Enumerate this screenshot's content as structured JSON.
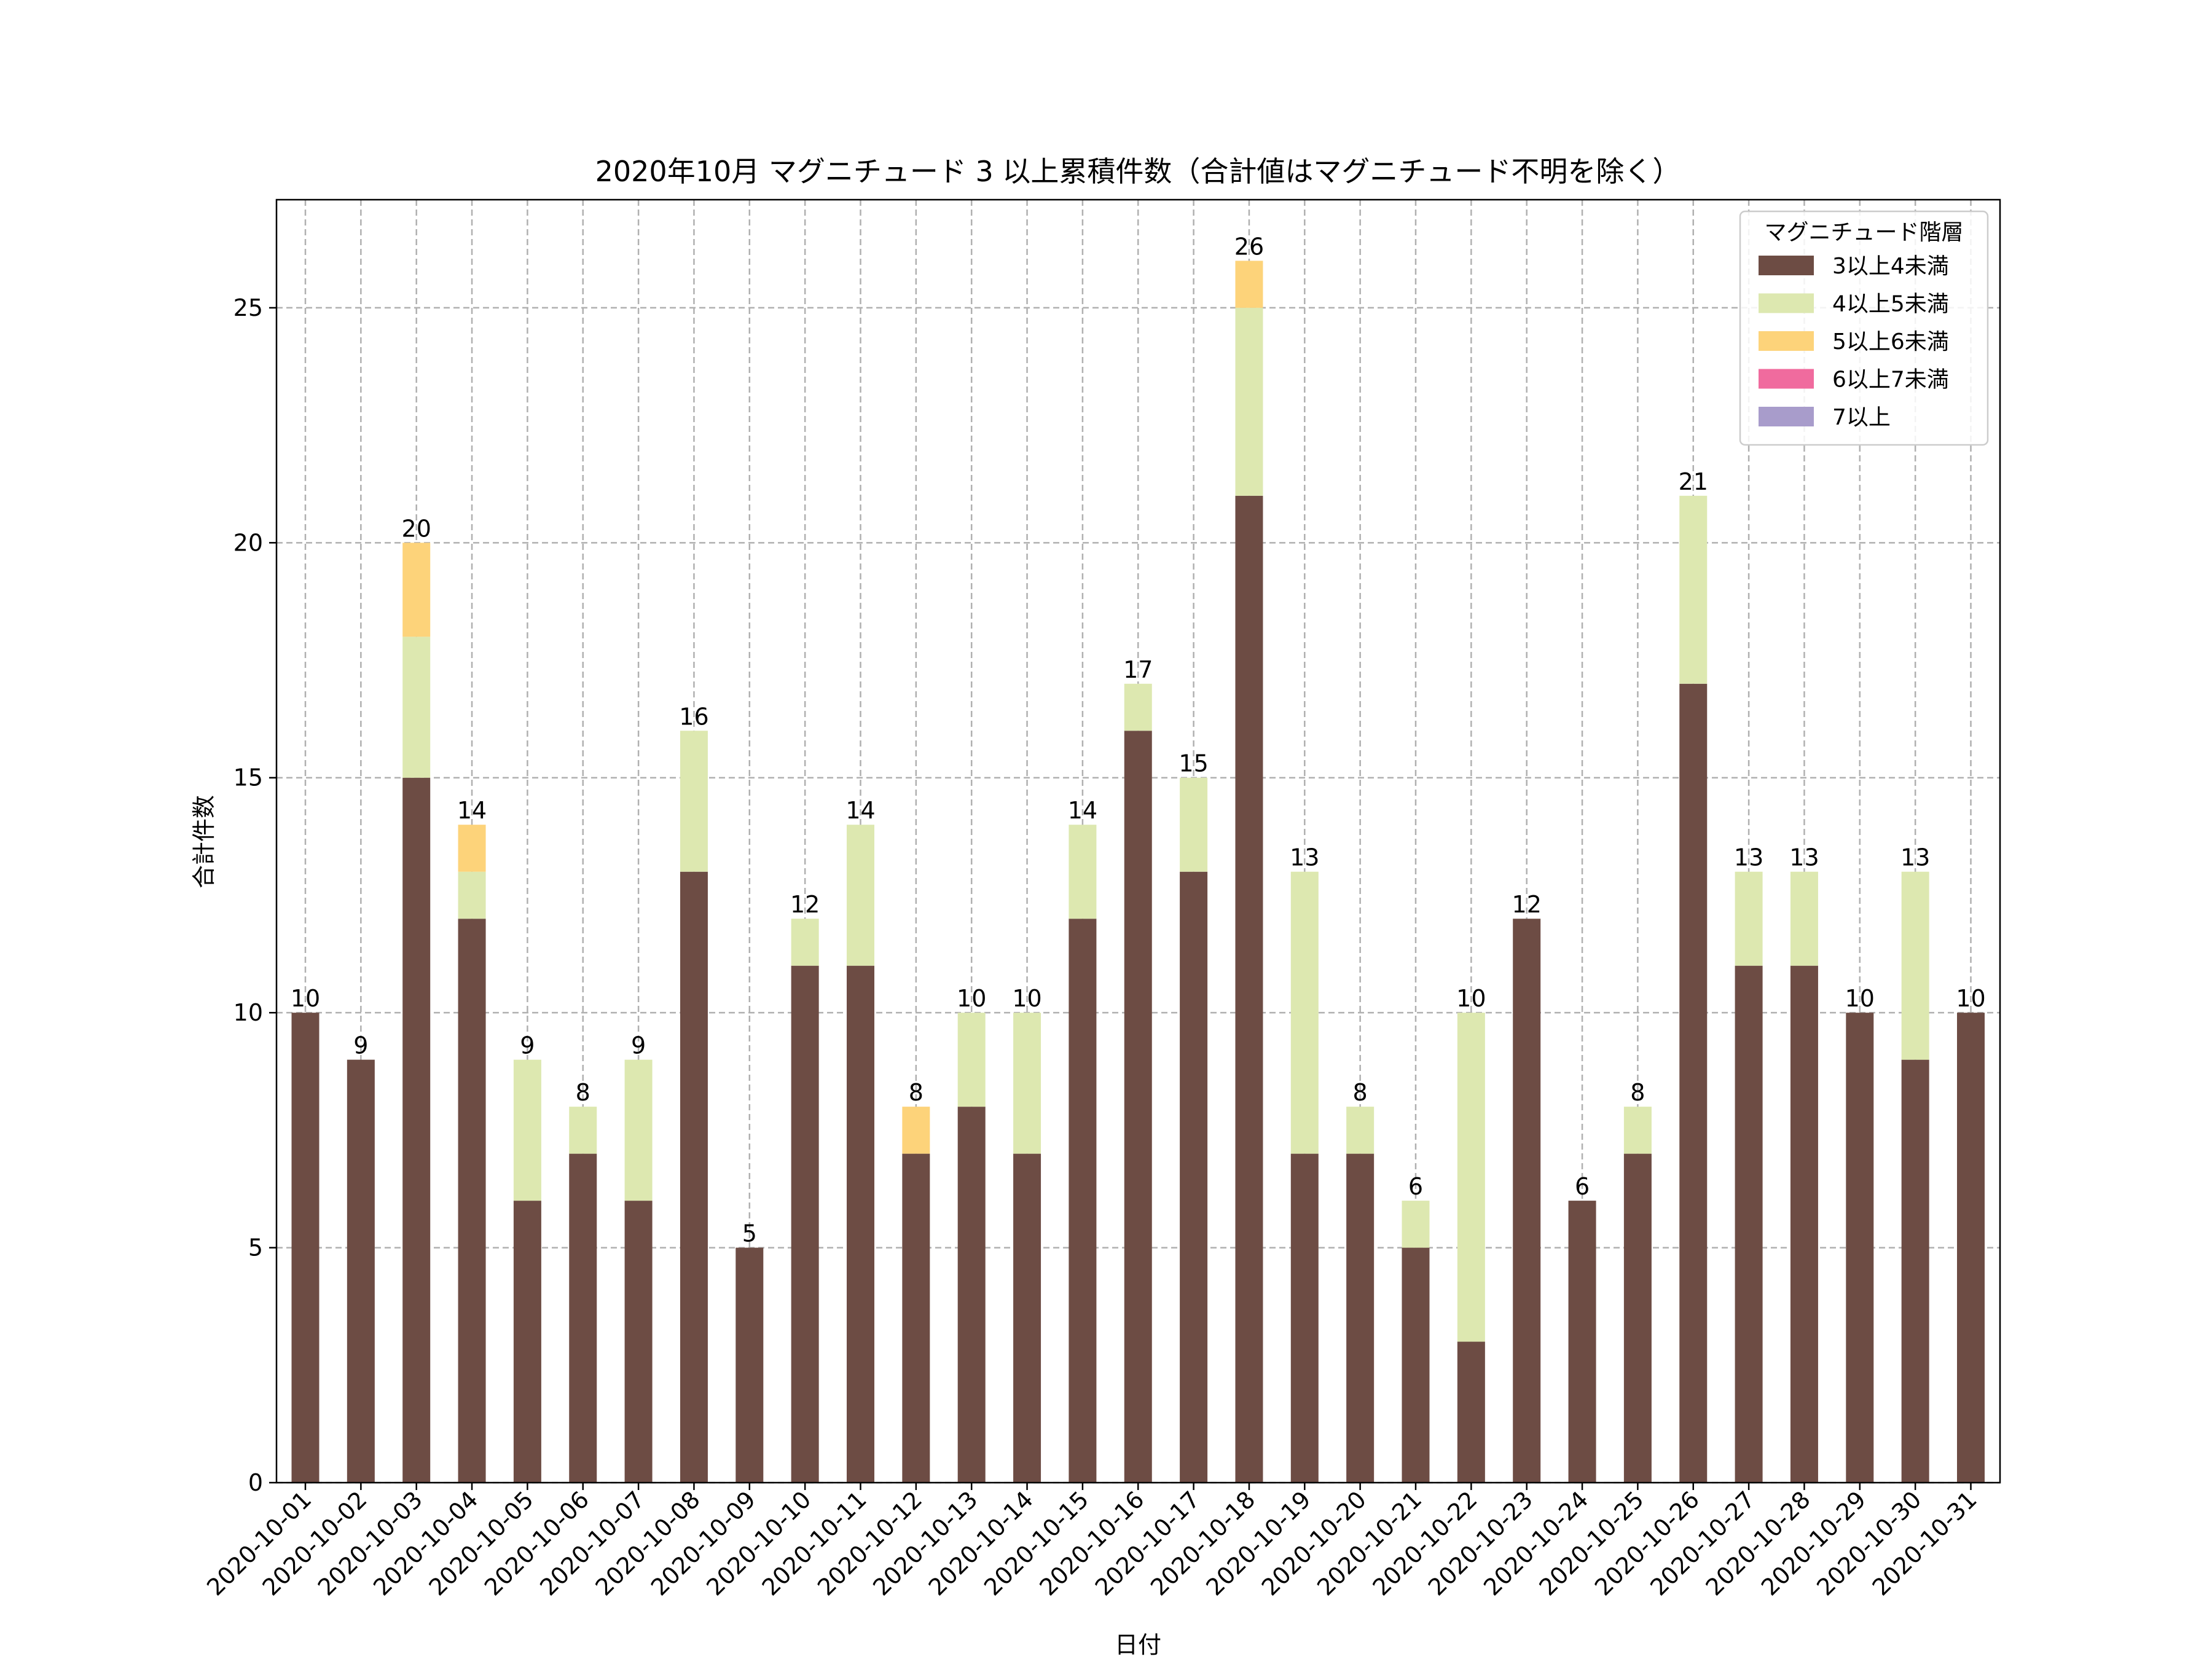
{
  "chart_data": {
    "type": "bar",
    "stacked": true,
    "title": "2020年10月 マグニチュード 3 以上累積件数（合計値はマグニチュード不明を除く）",
    "xlabel": "日付",
    "ylabel": "合計件数",
    "ylim": [
      0,
      27.3
    ],
    "yticks": [
      0,
      5,
      10,
      15,
      20,
      25
    ],
    "grid": true,
    "legend_title": "マグニチュード階層",
    "legend_position": "top-right",
    "categories": [
      "2020-10-01",
      "2020-10-02",
      "2020-10-03",
      "2020-10-04",
      "2020-10-05",
      "2020-10-06",
      "2020-10-07",
      "2020-10-08",
      "2020-10-09",
      "2020-10-10",
      "2020-10-11",
      "2020-10-12",
      "2020-10-13",
      "2020-10-14",
      "2020-10-15",
      "2020-10-16",
      "2020-10-17",
      "2020-10-18",
      "2020-10-19",
      "2020-10-20",
      "2020-10-21",
      "2020-10-22",
      "2020-10-23",
      "2020-10-24",
      "2020-10-25",
      "2020-10-26",
      "2020-10-27",
      "2020-10-28",
      "2020-10-29",
      "2020-10-30",
      "2020-10-31"
    ],
    "series": [
      {
        "name": "3以上4未満",
        "color": "#6d4c44",
        "values": [
          10,
          9,
          15,
          12,
          6,
          7,
          6,
          13,
          5,
          11,
          11,
          7,
          8,
          7,
          12,
          16,
          13,
          21,
          7,
          7,
          5,
          3,
          12,
          6,
          7,
          17,
          11,
          11,
          10,
          9,
          10
        ]
      },
      {
        "name": "4以上5未満",
        "color": "#dde8b0",
        "values": [
          0,
          0,
          3,
          1,
          3,
          1,
          3,
          3,
          0,
          1,
          3,
          0,
          2,
          3,
          2,
          1,
          2,
          4,
          6,
          1,
          1,
          7,
          0,
          0,
          1,
          4,
          2,
          2,
          0,
          4,
          0
        ]
      },
      {
        "name": "5以上6未満",
        "color": "#fdd37a",
        "values": [
          0,
          0,
          2,
          1,
          0,
          0,
          0,
          0,
          0,
          0,
          0,
          1,
          0,
          0,
          0,
          0,
          0,
          1,
          0,
          0,
          0,
          0,
          0,
          0,
          0,
          0,
          0,
          0,
          0,
          0,
          0
        ]
      },
      {
        "name": "6以上7未満",
        "color": "#f06b9e",
        "values": [
          0,
          0,
          0,
          0,
          0,
          0,
          0,
          0,
          0,
          0,
          0,
          0,
          0,
          0,
          0,
          0,
          0,
          0,
          0,
          0,
          0,
          0,
          0,
          0,
          0,
          0,
          0,
          0,
          0,
          0,
          0
        ]
      },
      {
        "name": "7以上",
        "color": "#a89ccb",
        "values": [
          0,
          0,
          0,
          0,
          0,
          0,
          0,
          0,
          0,
          0,
          0,
          0,
          0,
          0,
          0,
          0,
          0,
          0,
          0,
          0,
          0,
          0,
          0,
          0,
          0,
          0,
          0,
          0,
          0,
          0,
          0
        ]
      }
    ],
    "totals": [
      10,
      9,
      20,
      14,
      9,
      8,
      9,
      16,
      5,
      12,
      14,
      8,
      10,
      10,
      14,
      17,
      15,
      26,
      13,
      8,
      6,
      10,
      12,
      6,
      8,
      21,
      13,
      13,
      10,
      13,
      10
    ]
  }
}
